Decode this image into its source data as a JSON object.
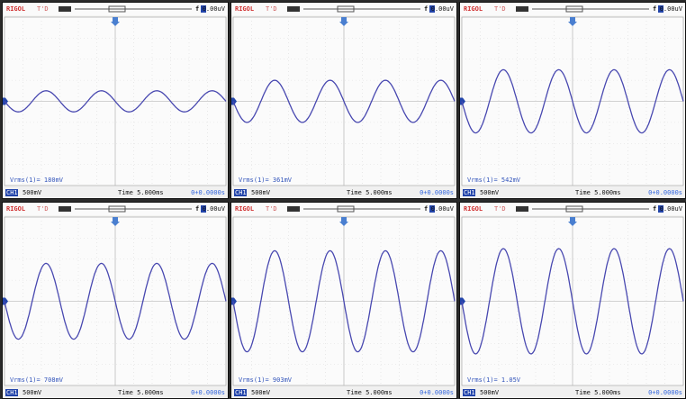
{
  "panels": [
    {
      "brand": "RIGOL",
      "status": "T'D",
      "trigger_level": "0.00uV",
      "measurement": "Vrms(1)= 180mV",
      "channel": "CH1",
      "scale": "500mV",
      "time": "Time 5.000ms",
      "offset": "0+0.0000s",
      "amplitude_div": 0.5,
      "cycles": 4
    },
    {
      "brand": "RIGOL",
      "status": "T'D",
      "trigger_level": "0.00uV",
      "measurement": "Vrms(1)= 361mV",
      "channel": "CH1",
      "scale": "500mV",
      "time": "Time 5.000ms",
      "offset": "0+0.0000s",
      "amplitude_div": 1.0,
      "cycles": 4
    },
    {
      "brand": "RIGOL",
      "status": "T'D",
      "trigger_level": "0.00uV",
      "measurement": "Vrms(1)= 542mV",
      "channel": "CH1",
      "scale": "500mV",
      "time": "Time 5.000ms",
      "offset": "0+0.0000s",
      "amplitude_div": 1.5,
      "cycles": 4
    },
    {
      "brand": "RIGOL",
      "status": "T'D",
      "trigger_level": "0.00uV",
      "measurement": "Vrms(1)= 708mV",
      "channel": "CH1",
      "scale": "500mV",
      "time": "Time 5.000ms",
      "offset": "0+0.0000s",
      "amplitude_div": 1.8,
      "cycles": 4
    },
    {
      "brand": "RIGOL",
      "status": "T'D",
      "trigger_level": "0.00uV",
      "measurement": "Vrms(1)= 903mV",
      "channel": "CH1",
      "scale": "500mV",
      "time": "Time 5.000ms",
      "offset": "0+0.0000s",
      "amplitude_div": 2.4,
      "cycles": 4
    },
    {
      "brand": "RIGOL",
      "status": "T'D",
      "trigger_level": "0.00uV",
      "measurement": "Vrms(1)= 1.05V",
      "channel": "CH1",
      "scale": "500mV",
      "time": "Time 5.000ms",
      "offset": "0+0.0000s",
      "amplitude_div": 2.5,
      "cycles": 4
    }
  ]
}
